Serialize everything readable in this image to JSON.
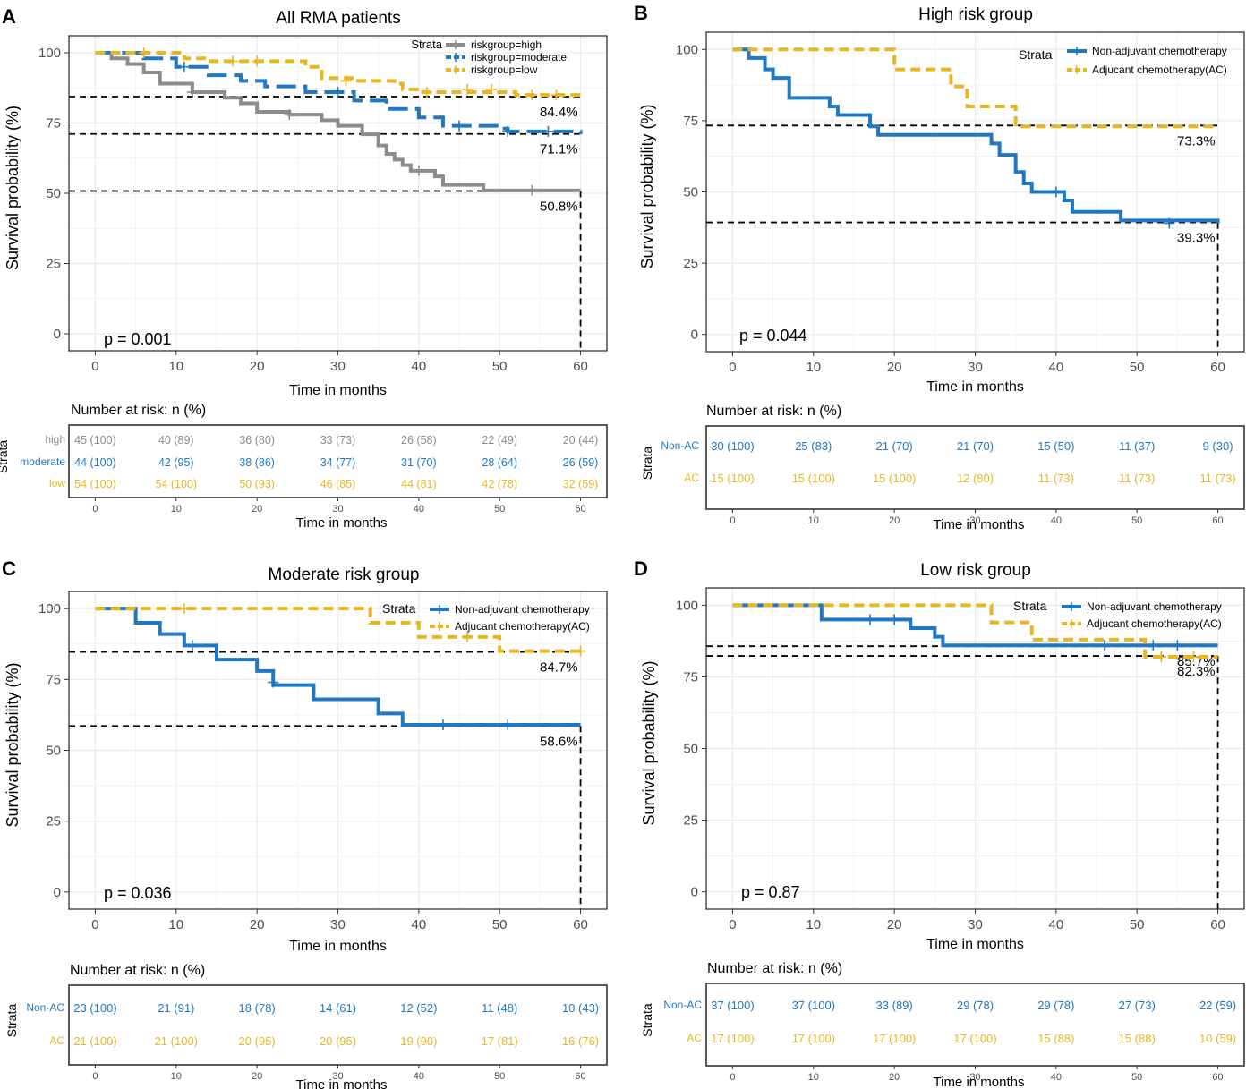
{
  "colors": {
    "high": "#8c8c8c",
    "moderate": "#1f78c1",
    "low": "#e8b622",
    "nonac": "#1f78c1",
    "ac": "#e8b622",
    "ref": "#000000"
  },
  "chart_data": [
    {
      "id": "A",
      "type": "line",
      "panel_label": "A",
      "title": "All RMA patients",
      "xlabel": "Time in months",
      "ylabel": "Survival probability (%)",
      "xlim": [
        0,
        60
      ],
      "ylim": [
        0,
        100
      ],
      "xticks": [
        "0",
        "10",
        "20",
        "30",
        "40",
        "50",
        "60"
      ],
      "yticks": [
        "0",
        "25",
        "50",
        "75",
        "100"
      ],
      "legend_title": "Strata",
      "legend_position": "top-right",
      "pvalue": "p = 0.001",
      "series": [
        {
          "name": "riskgroup=high",
          "color_key": "high",
          "steps": [
            [
              0,
              100
            ],
            [
              2,
              98
            ],
            [
              4,
              96
            ],
            [
              6,
              93
            ],
            [
              8,
              89
            ],
            [
              12,
              86
            ],
            [
              16,
              84
            ],
            [
              18,
              82
            ],
            [
              20,
              79
            ],
            [
              24,
              78
            ],
            [
              28,
              76
            ],
            [
              30,
              74
            ],
            [
              33,
              71
            ],
            [
              35,
              67
            ],
            [
              36,
              64
            ],
            [
              37,
              62
            ],
            [
              38,
              60
            ],
            [
              39,
              58
            ],
            [
              42,
              56
            ],
            [
              43,
              53
            ],
            [
              48,
              51
            ],
            [
              60,
              51
            ]
          ],
          "censors": [
            [
              12,
              86
            ],
            [
              24,
              78
            ],
            [
              40,
              58
            ],
            [
              54,
              51
            ]
          ],
          "end_label": "50.8%",
          "end_value": 50.8
        },
        {
          "name": "riskgroup=moderate",
          "color_key": "moderate",
          "steps": [
            [
              0,
              100
            ],
            [
              6,
              98
            ],
            [
              10,
              95
            ],
            [
              14,
              92
            ],
            [
              18,
              90
            ],
            [
              21,
              88
            ],
            [
              26,
              86
            ],
            [
              32,
              83
            ],
            [
              36,
              80
            ],
            [
              40,
              77
            ],
            [
              43,
              74
            ],
            [
              50,
              73
            ],
            [
              51,
              72
            ],
            [
              60,
              71
            ]
          ],
          "censors": [
            [
              11,
              95
            ],
            [
              30,
              86
            ],
            [
              45,
              74
            ],
            [
              51,
              72
            ],
            [
              56,
              72
            ]
          ],
          "end_label": "71.1%",
          "end_value": 71.1
        },
        {
          "name": "riskgroup=low",
          "color_key": "low",
          "steps": [
            [
              0,
              100
            ],
            [
              11,
              98
            ],
            [
              14,
              97
            ],
            [
              17,
              97
            ],
            [
              26,
              95
            ],
            [
              28,
              91
            ],
            [
              32,
              90
            ],
            [
              37,
              89
            ],
            [
              38,
              87
            ],
            [
              40,
              86
            ],
            [
              51,
              86
            ],
            [
              52,
              85
            ],
            [
              60,
              85
            ]
          ],
          "censors": [
            [
              6,
              100
            ],
            [
              17,
              97
            ],
            [
              20,
              97
            ],
            [
              31,
              90
            ],
            [
              41,
              86
            ],
            [
              46,
              87
            ],
            [
              49,
              87
            ],
            [
              54,
              85
            ],
            [
              57,
              85
            ]
          ],
          "end_label": "84.4%",
          "end_value": 84.4
        }
      ],
      "risk_table": {
        "title": "Number at risk: n (%)",
        "strata_label": "Strata",
        "xlabel": "Time in months",
        "ticks": [
          "0",
          "10",
          "20",
          "30",
          "40",
          "50",
          "60"
        ],
        "rows": [
          {
            "label": "high",
            "color_key": "high",
            "values": [
              "45 (100)",
              "40 (89)",
              "36 (80)",
              "33 (73)",
              "26 (58)",
              "22 (49)",
              "20 (44)"
            ]
          },
          {
            "label": "moderate",
            "color_key": "moderate",
            "values": [
              "44 (100)",
              "42 (95)",
              "38 (86)",
              "34 (77)",
              "31 (70)",
              "28 (64)",
              "26 (59)"
            ]
          },
          {
            "label": "low",
            "color_key": "low",
            "values": [
              "54 (100)",
              "54 (100)",
              "50 (93)",
              "46 (85)",
              "44 (81)",
              "42 (78)",
              "32 (59)"
            ]
          }
        ]
      }
    },
    {
      "id": "B",
      "type": "line",
      "panel_label": "B",
      "title": "High risk group",
      "xlabel": "Time in months",
      "ylabel": "Survival probability (%)",
      "xlim": [
        0,
        60
      ],
      "ylim": [
        0,
        100
      ],
      "xticks": [
        "0",
        "10",
        "20",
        "30",
        "40",
        "50",
        "60"
      ],
      "yticks": [
        "0",
        "25",
        "50",
        "75",
        "100"
      ],
      "legend_title": "Strata",
      "legend_position": "top-right",
      "pvalue": "p = 0.044",
      "series": [
        {
          "name": "Non-adjuvant chemotherapy",
          "color_key": "nonac",
          "steps": [
            [
              0,
              100
            ],
            [
              2,
              97
            ],
            [
              4,
              93
            ],
            [
              5,
              90
            ],
            [
              7,
              83
            ],
            [
              12,
              80
            ],
            [
              13,
              77
            ],
            [
              17,
              73
            ],
            [
              18,
              70
            ],
            [
              32,
              67
            ],
            [
              33,
              63
            ],
            [
              35,
              57
            ],
            [
              36,
              53
            ],
            [
              37,
              50
            ],
            [
              41,
              47
            ],
            [
              42,
              43
            ],
            [
              48,
              40
            ],
            [
              60,
              39
            ]
          ],
          "censors": [
            [
              40,
              50
            ],
            [
              54,
              39
            ]
          ],
          "end_label": "39.3%",
          "end_value": 39.3
        },
        {
          "name": "Adjucant chemotherapy(AC)",
          "color_key": "ac",
          "steps": [
            [
              0,
              100
            ],
            [
              20,
              93
            ],
            [
              27,
              87
            ],
            [
              29,
              80
            ],
            [
              35,
              73
            ],
            [
              60,
              73
            ]
          ],
          "censors": [],
          "end_label": "73.3%",
          "end_value": 73.3
        }
      ],
      "risk_table": {
        "title": "Number at risk: n (%)",
        "strata_label": "Strata",
        "xlabel": "Time in months",
        "ticks": [
          "0",
          "10",
          "20",
          "30",
          "40",
          "50",
          "60"
        ],
        "rows": [
          {
            "label": "Non-AC",
            "color_key": "nonac",
            "values": [
              "30 (100)",
              "25 (83)",
              "21 (70)",
              "21 (70)",
              "15 (50)",
              "11 (37)",
              "9 (30)"
            ]
          },
          {
            "label": "AC",
            "color_key": "ac",
            "values": [
              "15 (100)",
              "15 (100)",
              "15 (100)",
              "12 (80)",
              "11 (73)",
              "11 (73)",
              "11 (73)"
            ]
          }
        ]
      }
    },
    {
      "id": "C",
      "type": "line",
      "panel_label": "C",
      "title": "Moderate risk group",
      "xlabel": "Time in months",
      "ylabel": "Survival probability (%)",
      "xlim": [
        0,
        60
      ],
      "ylim": [
        0,
        100
      ],
      "xticks": [
        "0",
        "10",
        "20",
        "30",
        "40",
        "50",
        "60"
      ],
      "yticks": [
        "0",
        "25",
        "50",
        "75",
        "100"
      ],
      "legend_title": "Strata",
      "legend_position": "top-right",
      "pvalue": "p = 0.036",
      "series": [
        {
          "name": "Non-adjuvant chemotherapy",
          "color_key": "nonac",
          "steps": [
            [
              0,
              100
            ],
            [
              5,
              95
            ],
            [
              8,
              91
            ],
            [
              11,
              87
            ],
            [
              15,
              82
            ],
            [
              20,
              78
            ],
            [
              22,
              73
            ],
            [
              27,
              68
            ],
            [
              35,
              63
            ],
            [
              38,
              59
            ],
            [
              60,
              59
            ]
          ],
          "censors": [
            [
              12,
              87
            ],
            [
              22,
              74
            ],
            [
              43,
              59
            ],
            [
              51,
              59
            ]
          ],
          "end_label": "58.6%",
          "end_value": 58.6
        },
        {
          "name": "Adjucant chemotherapy(AC)",
          "color_key": "ac",
          "steps": [
            [
              0,
              100
            ],
            [
              34,
              95
            ],
            [
              40,
              90
            ],
            [
              50,
              85
            ],
            [
              60,
              85
            ]
          ],
          "censors": [
            [
              11,
              100
            ],
            [
              46,
              90
            ],
            [
              60,
              85
            ]
          ],
          "end_label": "84.7%",
          "end_value": 84.7
        }
      ],
      "risk_table": {
        "title": "Number at risk: n (%)",
        "strata_label": "Strata",
        "xlabel": "Time in months",
        "ticks": [
          "0",
          "10",
          "20",
          "30",
          "40",
          "50",
          "60"
        ],
        "rows": [
          {
            "label": "Non-AC",
            "color_key": "nonac",
            "values": [
              "23 (100)",
              "21 (91)",
              "18 (78)",
              "14 (61)",
              "12 (52)",
              "11 (48)",
              "10 (43)"
            ]
          },
          {
            "label": "AC",
            "color_key": "ac",
            "values": [
              "21 (100)",
              "21 (100)",
              "20 (95)",
              "20 (95)",
              "19 (90)",
              "17 (81)",
              "16 (76)"
            ]
          }
        ]
      }
    },
    {
      "id": "D",
      "type": "line",
      "panel_label": "D",
      "title": "Low risk group",
      "xlabel": "Time in months",
      "ylabel": "Survival probability (%)",
      "xlim": [
        0,
        60
      ],
      "ylim": [
        0,
        100
      ],
      "xticks": [
        "0",
        "10",
        "20",
        "30",
        "40",
        "50",
        "60"
      ],
      "yticks": [
        "0",
        "25",
        "50",
        "75",
        "100"
      ],
      "legend_title": "Strata",
      "legend_position": "top-right",
      "pvalue": "p = 0.87",
      "series": [
        {
          "name": "Non-adjuvant chemotherapy",
          "color_key": "nonac",
          "steps": [
            [
              0,
              100
            ],
            [
              11,
              95
            ],
            [
              22,
              92
            ],
            [
              25,
              89
            ],
            [
              26,
              86
            ],
            [
              60,
              86
            ]
          ],
          "censors": [
            [
              17,
              95
            ],
            [
              20,
              95
            ],
            [
              46,
              86
            ],
            [
              52,
              86
            ],
            [
              55,
              86
            ]
          ],
          "end_label": "85.7%",
          "end_value": 85.7
        },
        {
          "name": "Adjucant chemotherapy(AC)",
          "color_key": "ac",
          "steps": [
            [
              0,
              100
            ],
            [
              32,
              94
            ],
            [
              37,
              88
            ],
            [
              51,
              82
            ],
            [
              60,
              82
            ]
          ],
          "censors": [
            [
              53,
              82
            ],
            [
              57,
              82
            ]
          ],
          "end_label": "82.3%",
          "end_value": 82.3
        }
      ],
      "risk_table": {
        "title": "Number at risk: n (%)",
        "strata_label": "Strata",
        "xlabel": "Time in months",
        "ticks": [
          "0",
          "10",
          "20",
          "30",
          "40",
          "50",
          "60"
        ],
        "rows": [
          {
            "label": "Non-AC",
            "color_key": "nonac",
            "values": [
              "37 (100)",
              "37 (100)",
              "33 (89)",
              "29 (78)",
              "29 (78)",
              "27 (73)",
              "22 (59)"
            ]
          },
          {
            "label": "AC",
            "color_key": "ac",
            "values": [
              "17 (100)",
              "17 (100)",
              "17 (100)",
              "17 (100)",
              "15 (88)",
              "15 (88)",
              "10 (59)"
            ]
          }
        ]
      }
    }
  ]
}
